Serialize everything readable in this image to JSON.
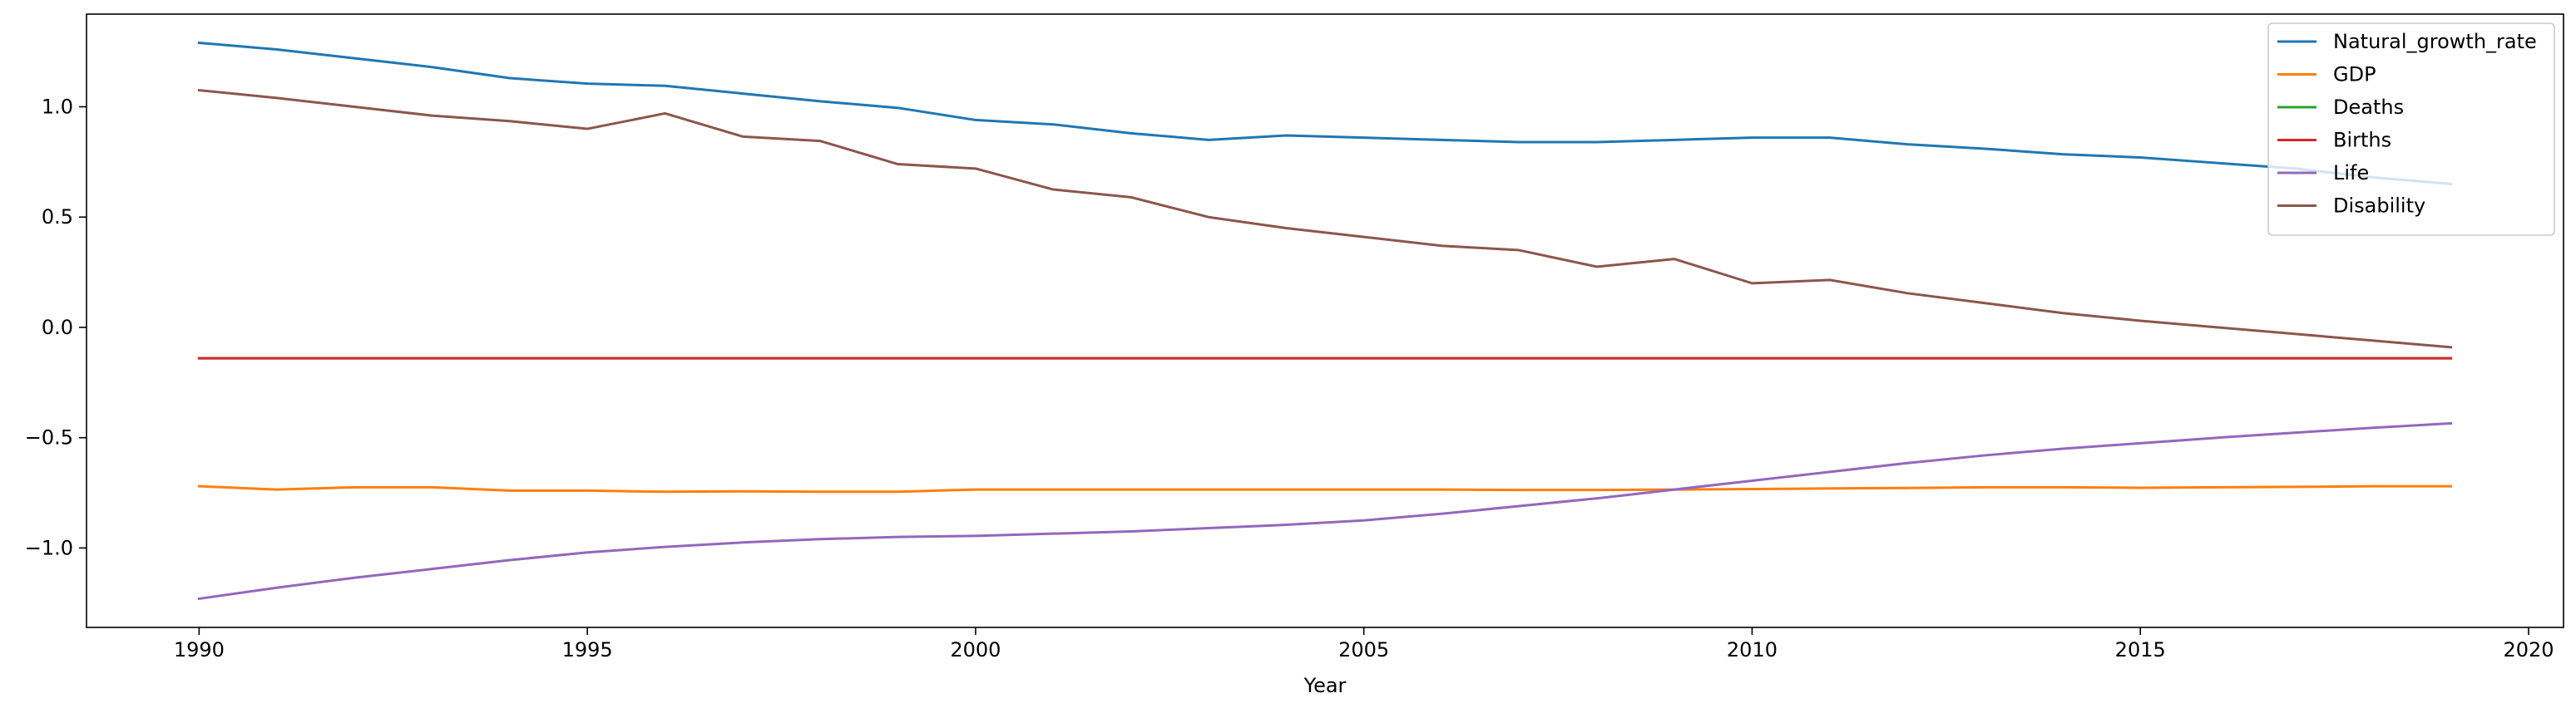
{
  "chart_data": {
    "type": "line",
    "title": "",
    "xlabel": "Year",
    "ylabel": "",
    "xlim": [
      1988.55,
      2020.45
    ],
    "ylim": [
      -1.36,
      1.42
    ],
    "xticks": [
      1990,
      1995,
      2000,
      2005,
      2010,
      2015,
      2020
    ],
    "yticks": [
      -1.0,
      -0.5,
      0.0,
      0.5,
      1.0
    ],
    "ytick_labels": [
      "−1.0",
      "−0.5",
      "0.0",
      "0.5",
      "1.0"
    ],
    "grid": false,
    "legend_position": "top-right",
    "x": [
      1990,
      1991,
      1992,
      1993,
      1994,
      1995,
      1996,
      1997,
      1998,
      1999,
      2000,
      2001,
      2002,
      2003,
      2004,
      2005,
      2006,
      2007,
      2008,
      2009,
      2010,
      2011,
      2012,
      2013,
      2014,
      2015,
      2016,
      2017,
      2018,
      2019
    ],
    "series": [
      {
        "name": "Natural_growth_rate",
        "color": "#1f77b4",
        "values": [
          1.29,
          1.26,
          1.22,
          1.18,
          1.13,
          1.105,
          1.095,
          1.06,
          1.025,
          0.995,
          0.94,
          0.92,
          0.88,
          0.85,
          0.87,
          0.86,
          0.85,
          0.84,
          0.84,
          0.85,
          0.86,
          0.86,
          0.83,
          0.81,
          0.785,
          0.77,
          0.745,
          0.72,
          0.68,
          0.65
        ]
      },
      {
        "name": "GDP",
        "color": "#ff7f0e",
        "values": [
          -0.72,
          -0.735,
          -0.725,
          -0.725,
          -0.74,
          -0.74,
          -0.745,
          -0.743,
          -0.745,
          -0.745,
          -0.735,
          -0.735,
          -0.735,
          -0.735,
          -0.735,
          -0.735,
          -0.735,
          -0.737,
          -0.737,
          -0.735,
          -0.733,
          -0.73,
          -0.728,
          -0.725,
          -0.725,
          -0.727,
          -0.725,
          -0.723,
          -0.72,
          -0.72
        ]
      },
      {
        "name": "Deaths",
        "color": "#2ca02c",
        "values": [
          -0.14,
          -0.14,
          -0.14,
          -0.14,
          -0.14,
          -0.14,
          -0.14,
          -0.14,
          -0.14,
          -0.14,
          -0.14,
          -0.14,
          -0.14,
          -0.14,
          -0.14,
          -0.14,
          -0.14,
          -0.14,
          -0.14,
          -0.14,
          -0.14,
          -0.14,
          -0.14,
          -0.14,
          -0.14,
          -0.14,
          -0.14,
          -0.14,
          -0.14,
          -0.14
        ]
      },
      {
        "name": "Births",
        "color": "#d62728",
        "values": [
          -0.14,
          -0.14,
          -0.14,
          -0.14,
          -0.14,
          -0.14,
          -0.14,
          -0.14,
          -0.14,
          -0.14,
          -0.14,
          -0.14,
          -0.14,
          -0.14,
          -0.14,
          -0.14,
          -0.14,
          -0.14,
          -0.14,
          -0.14,
          -0.14,
          -0.14,
          -0.14,
          -0.14,
          -0.14,
          -0.14,
          -0.14,
          -0.14,
          -0.14,
          -0.14
        ]
      },
      {
        "name": "Life",
        "color": "#9467bd",
        "values": [
          -1.23,
          -1.18,
          -1.135,
          -1.095,
          -1.055,
          -1.02,
          -0.995,
          -0.975,
          -0.96,
          -0.95,
          -0.945,
          -0.935,
          -0.925,
          -0.91,
          -0.895,
          -0.875,
          -0.845,
          -0.81,
          -0.775,
          -0.735,
          -0.695,
          -0.655,
          -0.615,
          -0.58,
          -0.55,
          -0.525,
          -0.5,
          -0.477,
          -0.455,
          -0.435
        ]
      },
      {
        "name": "Disability",
        "color": "#8c564b",
        "values": [
          1.075,
          1.04,
          1.0,
          0.96,
          0.935,
          0.9,
          0.97,
          0.865,
          0.845,
          0.74,
          0.72,
          0.625,
          0.59,
          0.5,
          0.45,
          0.41,
          0.37,
          0.35,
          0.275,
          0.31,
          0.2,
          0.215,
          0.155,
          0.11,
          0.065,
          0.03,
          0.0,
          -0.03,
          -0.06,
          -0.09
        ]
      }
    ]
  }
}
